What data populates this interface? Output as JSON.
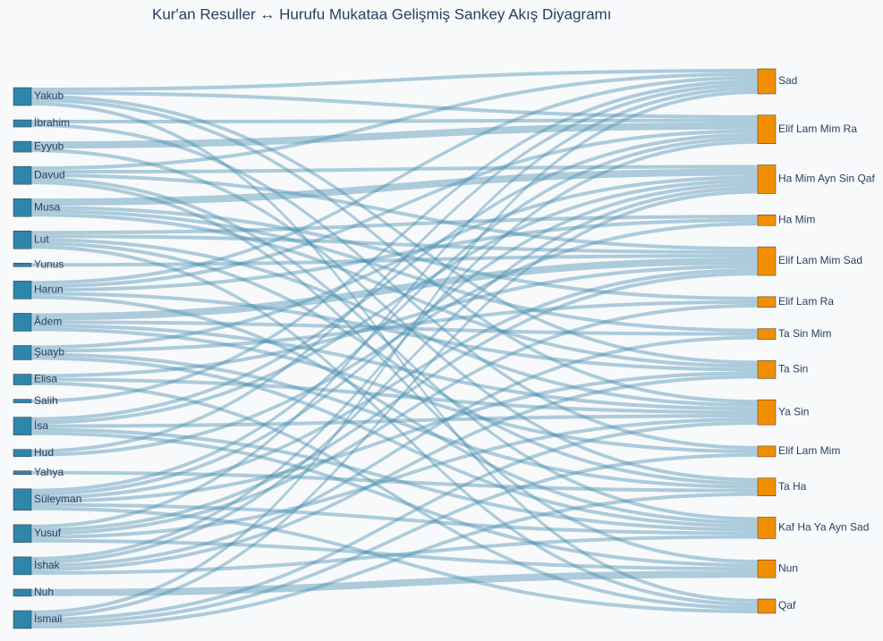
{
  "chart_data": {
    "type": "sankey",
    "title": "Kur'an Resuller ↔ Hurufu Mukataa Gelişmiş Sankey Akış Diyagramı",
    "sources": [
      "Yakub",
      "İbrahim",
      "Eyyub",
      "Davud",
      "Musa",
      "Lut",
      "Yunus",
      "Harun",
      "Âdem",
      "Şuayb",
      "Elisa",
      "Salih",
      "İsa",
      "Hud",
      "Yahya",
      "Süleyman",
      "Yusuf",
      "İshak",
      "Nuh",
      "İsmail"
    ],
    "targets": [
      "Sad",
      "Elif Lam Mim Ra",
      "Ha Mim Ayn Sin Qaf",
      "Ha Mim",
      "Elif Lam Mim Sad",
      "Elif Lam Ra",
      "Ta Sin Mim",
      "Ta Sin",
      "Ya Sin",
      "Elif Lam Mim",
      "Ta Ha",
      "Kaf Ha Ya Ayn Sad",
      "Nun",
      "Qaf"
    ],
    "source_color": "#2e86ab",
    "target_color": "#f18f01",
    "link_color": "rgba(70,140,175,0.42)",
    "links": [
      {
        "source": "Yakub",
        "target": "Sad",
        "value": 1
      },
      {
        "source": "Yakub",
        "target": "Elif Lam Mim Ra",
        "value": 1
      },
      {
        "source": "Yakub",
        "target": "Ta Sin",
        "value": 1
      },
      {
        "source": "Yakub",
        "target": "Ya Sin",
        "value": 1
      },
      {
        "source": "Yakub",
        "target": "Qaf",
        "value": 1
      },
      {
        "source": "İbrahim",
        "target": "Elif Lam Mim Ra",
        "value": 1
      },
      {
        "source": "İbrahim",
        "target": "Elif Lam Mim",
        "value": 1
      },
      {
        "source": "Eyyub",
        "target": "Elif Lam Mim Ra",
        "value": 2
      },
      {
        "source": "Eyyub",
        "target": "Ta Ha",
        "value": 1
      },
      {
        "source": "Davud",
        "target": "Sad",
        "value": 1
      },
      {
        "source": "Davud",
        "target": "Ha Mim Ayn Sin Qaf",
        "value": 1
      },
      {
        "source": "Davud",
        "target": "Elif Lam Mim Sad",
        "value": 1
      },
      {
        "source": "Davud",
        "target": "Kaf Ha Ya Ayn Sad",
        "value": 1
      },
      {
        "source": "Davud",
        "target": "Nun",
        "value": 1
      },
      {
        "source": "Musa",
        "target": "Ha Mim Ayn Sin Qaf",
        "value": 2
      },
      {
        "source": "Musa",
        "target": "Elif Lam Ra",
        "value": 1
      },
      {
        "source": "Musa",
        "target": "Ta Sin Mim",
        "value": 1
      },
      {
        "source": "Musa",
        "target": "Ta Sin",
        "value": 1
      },
      {
        "source": "Lut",
        "target": "Ha Mim",
        "value": 1
      },
      {
        "source": "Lut",
        "target": "Elif Lam Mim Sad",
        "value": 1
      },
      {
        "source": "Lut",
        "target": "Ya Sin",
        "value": 1
      },
      {
        "source": "Lut",
        "target": "Ta Ha",
        "value": 1
      },
      {
        "source": "Lut",
        "target": "Qaf",
        "value": 1
      },
      {
        "source": "Yunus",
        "target": "Elif Lam Mim Sad",
        "value": 1
      },
      {
        "source": "Harun",
        "target": "Sad",
        "value": 1
      },
      {
        "source": "Harun",
        "target": "Elif Lam Mim Ra",
        "value": 1
      },
      {
        "source": "Harun",
        "target": "Ha Mim",
        "value": 1
      },
      {
        "source": "Harun",
        "target": "Ta Sin",
        "value": 1
      },
      {
        "source": "Harun",
        "target": "Kaf Ha Ya Ayn Sad",
        "value": 1
      },
      {
        "source": "Âdem",
        "target": "Elif Lam Mim Sad",
        "value": 2
      },
      {
        "source": "Âdem",
        "target": "Ta Sin Mim",
        "value": 1
      },
      {
        "source": "Âdem",
        "target": "Ya Sin",
        "value": 1
      },
      {
        "source": "Âdem",
        "target": "Elif Lam Mim",
        "value": 1
      },
      {
        "source": "Şuayb",
        "target": "Ha Mim Ayn Sin Qaf",
        "value": 1
      },
      {
        "source": "Şuayb",
        "target": "Elif Lam Ra",
        "value": 1
      },
      {
        "source": "Şuayb",
        "target": "Ta Ha",
        "value": 1
      },
      {
        "source": "Şuayb",
        "target": "Kaf Ha Ya Ayn Sad",
        "value": 1
      },
      {
        "source": "Elisa",
        "target": "Elif Lam Mim Sad",
        "value": 1
      },
      {
        "source": "Elisa",
        "target": "Ya Sin",
        "value": 1
      },
      {
        "source": "Elisa",
        "target": "Qaf",
        "value": 1
      },
      {
        "source": "Salih",
        "target": "Sad",
        "value": 1
      },
      {
        "source": "İsa",
        "target": "Elif Lam Mim Ra",
        "value": 1
      },
      {
        "source": "İsa",
        "target": "Ha Mim Ayn Sin Qaf",
        "value": 1
      },
      {
        "source": "İsa",
        "target": "Ya Sin",
        "value": 1
      },
      {
        "source": "İsa",
        "target": "Kaf Ha Ya Ayn Sad",
        "value": 1
      },
      {
        "source": "İsa",
        "target": "Nun",
        "value": 1
      },
      {
        "source": "Hud",
        "target": "Sad",
        "value": 1
      },
      {
        "source": "Hud",
        "target": "Ha Mim",
        "value": 1
      },
      {
        "source": "Yahya",
        "target": "Ta Ha",
        "value": 1
      },
      {
        "source": "Süleyman",
        "target": "Elif Lam Mim Ra",
        "value": 1
      },
      {
        "source": "Süleyman",
        "target": "Ha Mim Ayn Sin Qaf",
        "value": 1
      },
      {
        "source": "Süleyman",
        "target": "Elif Lam Mim Sad",
        "value": 1
      },
      {
        "source": "Süleyman",
        "target": "Ta Sin",
        "value": 1
      },
      {
        "source": "Süleyman",
        "target": "Kaf Ha Ya Ayn Sad",
        "value": 1
      },
      {
        "source": "Süleyman",
        "target": "Qaf",
        "value": 1
      },
      {
        "source": "Yusuf",
        "target": "Sad",
        "value": 1
      },
      {
        "source": "Yusuf",
        "target": "Elif Lam Mim Sad",
        "value": 1
      },
      {
        "source": "Yusuf",
        "target": "Elif Lam Ra",
        "value": 1
      },
      {
        "source": "Yusuf",
        "target": "Ya Sin",
        "value": 1
      },
      {
        "source": "Yusuf",
        "target": "Nun",
        "value": 1
      },
      {
        "source": "İshak",
        "target": "Elif Lam Mim Ra",
        "value": 1
      },
      {
        "source": "İshak",
        "target": "Ha Mim Ayn Sin Qaf",
        "value": 1
      },
      {
        "source": "İshak",
        "target": "Ta Sin Mim",
        "value": 1
      },
      {
        "source": "İshak",
        "target": "Ta Sin",
        "value": 1
      },
      {
        "source": "İshak",
        "target": "Kaf Ha Ya Ayn Sad",
        "value": 1
      },
      {
        "source": "Nuh",
        "target": "Nun",
        "value": 2
      },
      {
        "source": "İsmail",
        "target": "Sad",
        "value": 1
      },
      {
        "source": "İsmail",
        "target": "Ha Mim Ayn Sin Qaf",
        "value": 1
      },
      {
        "source": "İsmail",
        "target": "Ya Sin",
        "value": 1
      },
      {
        "source": "İsmail",
        "target": "Elif Lam Mim",
        "value": 1
      },
      {
        "source": "İsmail",
        "target": "Ta Ha",
        "value": 1
      }
    ]
  }
}
